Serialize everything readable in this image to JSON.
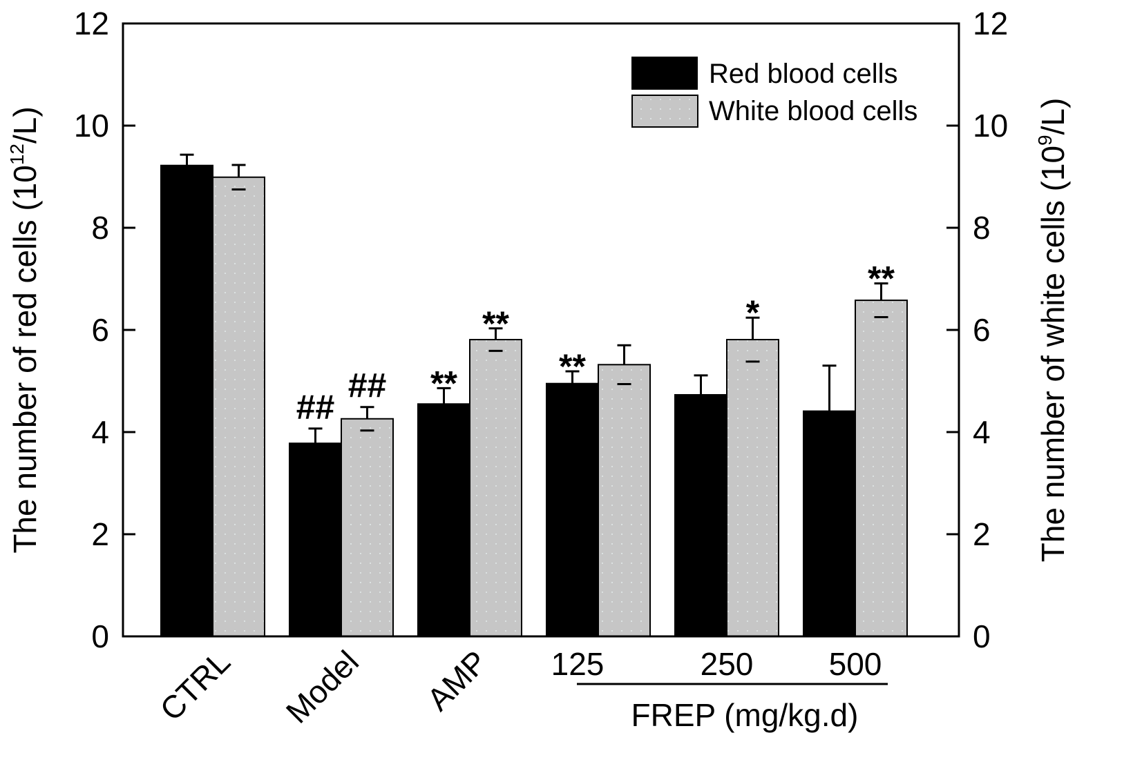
{
  "chart_data": {
    "type": "bar",
    "categories": [
      "CTRL",
      "Model",
      "AMP",
      "125",
      "250",
      "500"
    ],
    "group_label": "FREP (mg/kg.d)",
    "grouped_categories": [
      "125",
      "250",
      "500"
    ],
    "ylabel_left": {
      "text": "The number of red cells (10",
      "sup": "12",
      "tail": "/L)"
    },
    "ylabel_right": {
      "text": "The number of white cells (10",
      "sup": "9",
      "tail": "/L)"
    },
    "ylim": [
      0,
      12
    ],
    "yticks": [
      0,
      2,
      4,
      6,
      8,
      10,
      12
    ],
    "legend_position": "top-right",
    "series": [
      {
        "name": "Red blood cells",
        "color": "#000000",
        "axis": "left",
        "values": [
          9.22,
          3.78,
          4.55,
          4.95,
          4.73,
          4.41
        ],
        "errors": [
          0.21,
          0.29,
          0.31,
          0.24,
          0.38,
          0.89
        ],
        "annotations": [
          "",
          "##",
          "**",
          "**",
          "",
          ""
        ]
      },
      {
        "name": "White blood cells",
        "color": "#c6c6c6",
        "axis": "right",
        "values": [
          8.99,
          4.26,
          5.81,
          5.32,
          5.81,
          6.58
        ],
        "errors": [
          0.24,
          0.23,
          0.22,
          0.38,
          0.43,
          0.33
        ],
        "annotations": [
          "",
          "##",
          "**",
          "",
          "*",
          "**"
        ]
      }
    ]
  }
}
